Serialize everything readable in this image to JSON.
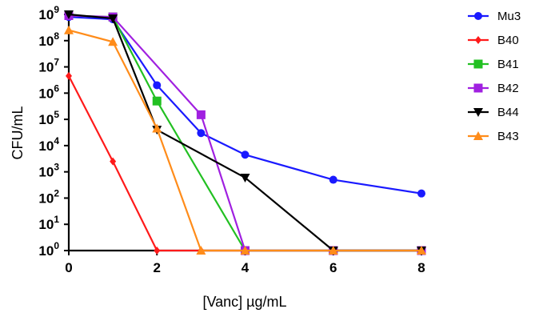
{
  "chart_data": {
    "type": "line",
    "xlabel": "[Vanc] µg/mL",
    "ylabel": "CFU/mL",
    "x": [
      0,
      1,
      2,
      3,
      4,
      6,
      8
    ],
    "xticks": [
      0,
      2,
      4,
      6,
      8
    ],
    "xlim": [
      0,
      8
    ],
    "yscale": "log",
    "ylim": [
      1,
      1000000000
    ],
    "yticks": [
      {
        "value": 1,
        "exp": "0"
      },
      {
        "value": 10,
        "exp": "1"
      },
      {
        "value": 100,
        "exp": "2"
      },
      {
        "value": 1000,
        "exp": "3"
      },
      {
        "value": 10000,
        "exp": "4"
      },
      {
        "value": 100000,
        "exp": "5"
      },
      {
        "value": 1000000,
        "exp": "6"
      },
      {
        "value": 10000000,
        "exp": "7"
      },
      {
        "value": 100000000,
        "exp": "8"
      },
      {
        "value": 1000000000,
        "exp": "9"
      }
    ],
    "ytick_base": "10",
    "legend_position": "right",
    "grid": false,
    "series": [
      {
        "name": "Mu3",
        "color": "#1a1aff",
        "marker": "circle",
        "points": [
          [
            0,
            800000000
          ],
          [
            1,
            650000000
          ],
          [
            2,
            2000000
          ],
          [
            3,
            30000
          ],
          [
            4,
            4500
          ],
          [
            6,
            500
          ],
          [
            8,
            150
          ]
        ]
      },
      {
        "name": "B40",
        "color": "#ff1a1a",
        "marker": "diamond",
        "points": [
          [
            0,
            4500000
          ],
          [
            1,
            2500
          ],
          [
            2,
            1
          ],
          [
            3,
            1
          ],
          [
            4,
            1
          ],
          [
            6,
            1
          ],
          [
            8,
            1
          ]
        ]
      },
      {
        "name": "B41",
        "color": "#22c022",
        "marker": "square",
        "points": [
          [
            0,
            900000000
          ],
          [
            1,
            800000000
          ],
          [
            2,
            500000
          ],
          [
            4,
            1
          ],
          [
            6,
            1
          ],
          [
            8,
            1
          ]
        ]
      },
      {
        "name": "B42",
        "color": "#a020e0",
        "marker": "square",
        "points": [
          [
            0,
            900000000
          ],
          [
            1,
            800000000
          ],
          [
            3,
            150000
          ],
          [
            4,
            1
          ],
          [
            6,
            1
          ],
          [
            8,
            1
          ]
        ]
      },
      {
        "name": "B44",
        "color": "#000000",
        "marker": "triangle-down",
        "points": [
          [
            0,
            1000000000
          ],
          [
            1,
            700000000
          ],
          [
            2,
            40000
          ],
          [
            4,
            600
          ],
          [
            6,
            1
          ],
          [
            8,
            1
          ]
        ]
      },
      {
        "name": "B43",
        "color": "#ff8c1a",
        "marker": "triangle-up",
        "points": [
          [
            0,
            250000000
          ],
          [
            1,
            90000000
          ],
          [
            2,
            45000
          ],
          [
            3,
            1
          ],
          [
            4,
            1
          ],
          [
            6,
            1
          ],
          [
            8,
            1
          ]
        ]
      }
    ]
  }
}
